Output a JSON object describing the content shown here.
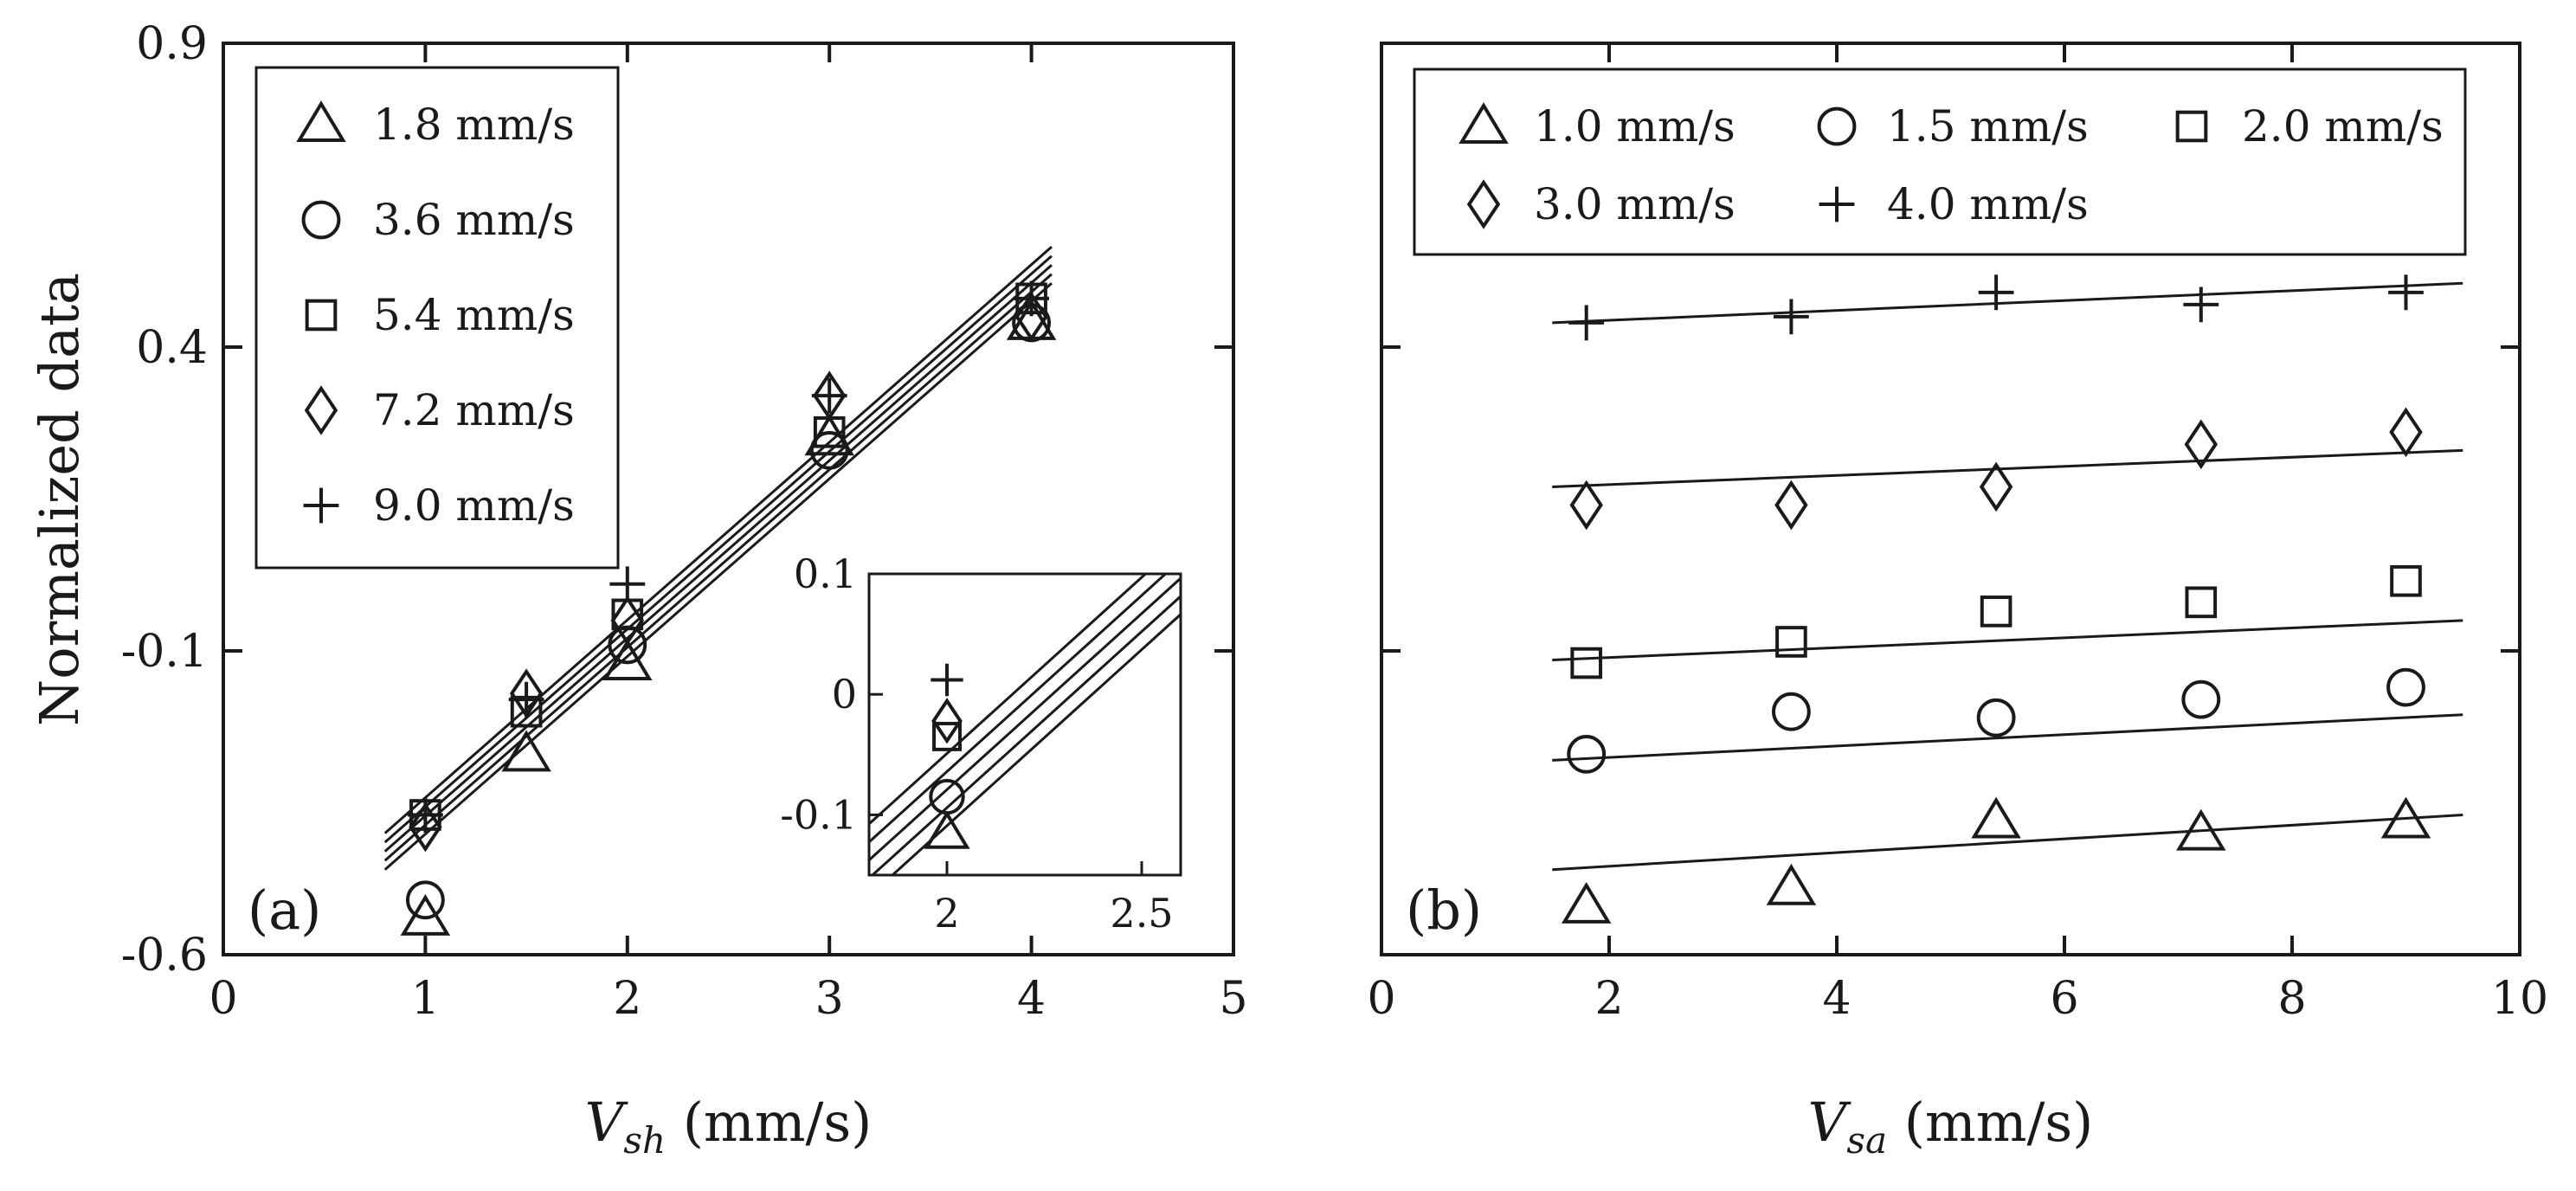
{
  "chart_data": [
    {
      "type": "scatter",
      "panel_label": "(a)",
      "ylabel": "Normalized data",
      "xlabel": {
        "main": "V",
        "sub": "sh",
        "unit": " (mm/s)"
      },
      "xlim": [
        0,
        5
      ],
      "ylim": [
        -0.6,
        0.9
      ],
      "xticks": [
        "0",
        "1",
        "2",
        "3",
        "4",
        "5"
      ],
      "yticks": [
        "-0.6",
        "-0.1",
        "0.4",
        "0.9"
      ],
      "ytick_values": [
        -0.6,
        -0.1,
        0.4,
        0.9
      ],
      "legend_position": "top-left",
      "fit_lines": [
        {
          "x": [
            0.8,
            4.1
          ],
          "y": [
            -0.4,
            0.565
          ]
        },
        {
          "x": [
            0.8,
            4.1
          ],
          "y": [
            -0.415,
            0.55
          ]
        },
        {
          "x": [
            0.8,
            4.1
          ],
          "y": [
            -0.43,
            0.535
          ]
        },
        {
          "x": [
            0.8,
            4.1
          ],
          "y": [
            -0.445,
            0.52
          ]
        },
        {
          "x": [
            0.8,
            4.1
          ],
          "y": [
            -0.46,
            0.505
          ]
        }
      ],
      "series": [
        {
          "name": "1.8 mm/s",
          "marker": "triangle",
          "x": [
            1,
            1.5,
            2,
            3,
            4
          ],
          "y": [
            -0.54,
            -0.27,
            -0.12,
            0.25,
            0.44
          ]
        },
        {
          "name": "3.6 mm/s",
          "marker": "circle",
          "x": [
            1,
            2,
            3,
            4
          ],
          "y": [
            -0.51,
            -0.09,
            0.23,
            0.44
          ]
        },
        {
          "name": "5.4 mm/s",
          "marker": "square",
          "x": [
            1,
            1.5,
            2,
            3,
            4
          ],
          "y": [
            -0.37,
            -0.2,
            -0.04,
            0.26,
            0.48
          ]
        },
        {
          "name": "7.2 mm/s",
          "marker": "diamond",
          "x": [
            1,
            1.5,
            2,
            3,
            4
          ],
          "y": [
            -0.39,
            -0.17,
            -0.05,
            0.32,
            0.45
          ]
        },
        {
          "name": "9.0 mm/s",
          "marker": "plus",
          "x": [
            1,
            1.5,
            2,
            3,
            4
          ],
          "y": [
            -0.37,
            -0.18,
            0.01,
            0.32,
            0.48
          ]
        }
      ],
      "inset": {
        "xlim": [
          1.8,
          2.6
        ],
        "ylim": [
          -0.15,
          0.1
        ],
        "xticks": [
          "2",
          "2.5"
        ],
        "xtick_values": [
          2,
          2.5
        ],
        "yticks": [
          "0.1",
          "0",
          "-0.1"
        ],
        "ytick_values": [
          0.1,
          0,
          -0.1
        ],
        "points": [
          {
            "marker": "triangle",
            "x": 2,
            "y": -0.115
          },
          {
            "marker": "circle",
            "x": 2,
            "y": -0.085
          },
          {
            "marker": "square",
            "x": 2,
            "y": -0.035
          },
          {
            "marker": "diamond",
            "x": 2,
            "y": -0.022
          },
          {
            "marker": "plus",
            "x": 2,
            "y": 0.012
          }
        ]
      }
    },
    {
      "type": "scatter",
      "panel_label": "(b)",
      "xlabel": {
        "main": "V",
        "sub": "sa",
        "unit": " (mm/s)"
      },
      "xlim": [
        0,
        10
      ],
      "ylim": [
        -0.6,
        0.9
      ],
      "xticks": [
        "0",
        "2",
        "4",
        "6",
        "8",
        "10"
      ],
      "ytick_values": [
        -0.6,
        -0.1,
        0.4,
        0.9
      ],
      "legend_position": "top",
      "fit_lines": [
        {
          "x": [
            1.5,
            9.5
          ],
          "y": [
            -0.46,
            -0.37
          ]
        },
        {
          "x": [
            1.5,
            9.5
          ],
          "y": [
            -0.28,
            -0.205
          ]
        },
        {
          "x": [
            1.5,
            9.5
          ],
          "y": [
            -0.115,
            -0.05
          ]
        },
        {
          "x": [
            1.5,
            9.5
          ],
          "y": [
            0.17,
            0.23
          ]
        },
        {
          "x": [
            1.5,
            9.5
          ],
          "y": [
            0.44,
            0.505
          ]
        }
      ],
      "series": [
        {
          "name": "1.0 mm/s",
          "marker": "triangle",
          "x": [
            1.8,
            3.6,
            5.4,
            7.2,
            9.0
          ],
          "y": [
            -0.52,
            -0.49,
            -0.38,
            -0.4,
            -0.38
          ]
        },
        {
          "name": "1.5 mm/s",
          "marker": "circle",
          "x": [
            1.8,
            3.6,
            5.4,
            7.2,
            9.0
          ],
          "y": [
            -0.27,
            -0.2,
            -0.21,
            -0.18,
            -0.16
          ]
        },
        {
          "name": "2.0 mm/s",
          "marker": "square",
          "x": [
            1.8,
            3.6,
            5.4,
            7.2,
            9.0
          ],
          "y": [
            -0.12,
            -0.085,
            -0.035,
            -0.02,
            0.015
          ]
        },
        {
          "name": "3.0 mm/s",
          "marker": "diamond",
          "x": [
            1.8,
            3.6,
            5.4,
            7.2,
            9.0
          ],
          "y": [
            0.14,
            0.14,
            0.17,
            0.24,
            0.26
          ]
        },
        {
          "name": "4.0 mm/s",
          "marker": "plus",
          "x": [
            1.8,
            3.6,
            5.4,
            7.2,
            9.0
          ],
          "y": [
            0.44,
            0.45,
            0.49,
            0.47,
            0.49
          ]
        }
      ]
    }
  ]
}
